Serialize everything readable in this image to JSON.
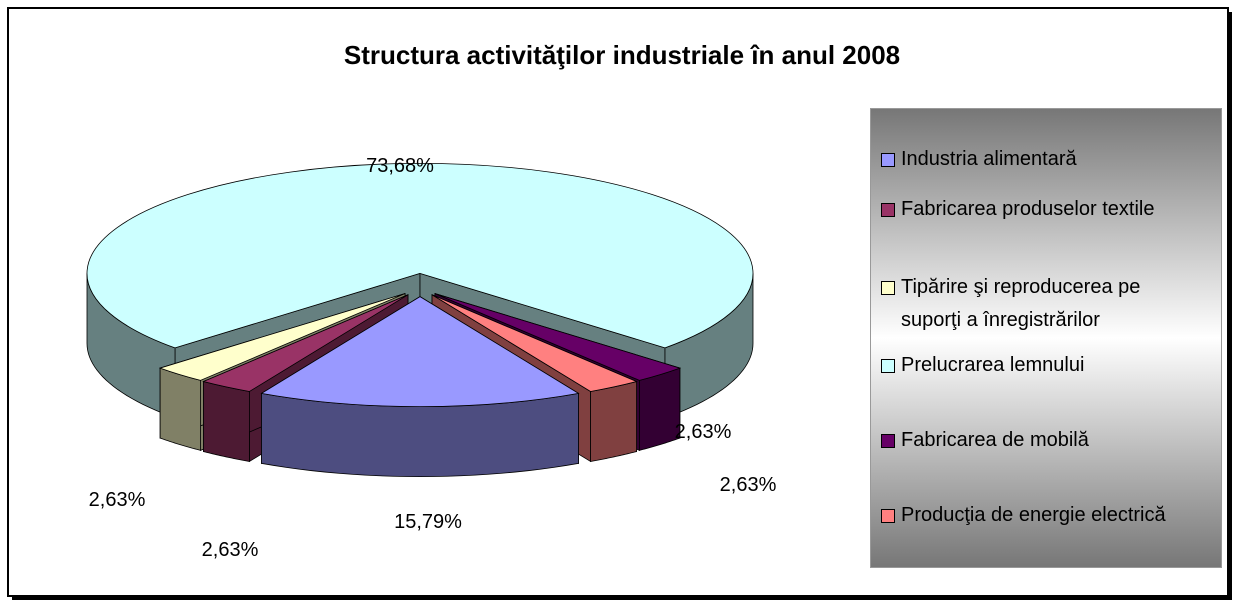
{
  "chart_data": {
    "type": "pie",
    "title": "Structura activităţilor industriale în anul 2008",
    "categories": [
      "Industria alimentară",
      "Fabricarea produselor textile",
      "Tipărire şi reproducerea pe suporţi a înregistrărilor",
      "Prelucrarea lemnului",
      "Fabricarea de mobilă",
      "Producţia de energie electrică"
    ],
    "values": [
      15.79,
      2.63,
      2.63,
      73.68,
      2.63,
      2.63
    ],
    "value_labels": [
      "15,79%",
      "2,63%",
      "2,63%",
      "73,68%",
      "2,63%",
      "2,63%"
    ],
    "colors": [
      "#9999ff",
      "#993366",
      "#ffffcc",
      "#ccffff",
      "#660066",
      "#ff8080"
    ],
    "legend": "right"
  }
}
